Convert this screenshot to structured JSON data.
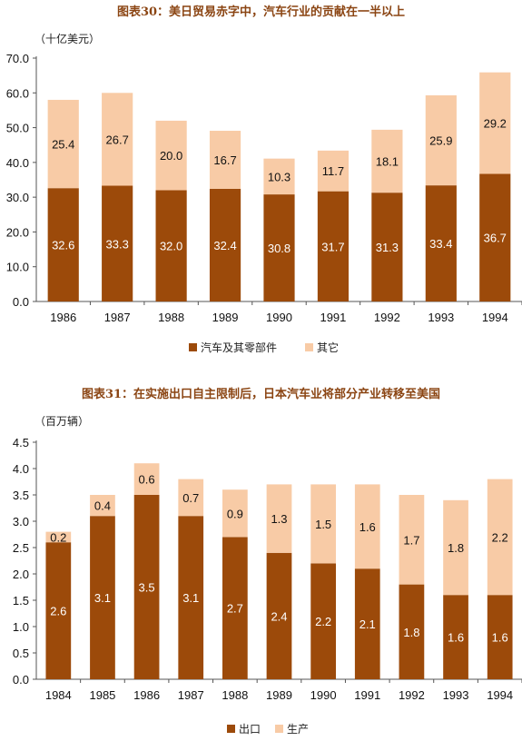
{
  "chart_data": [
    {
      "type": "bar",
      "stacked": true,
      "title": "图表30：美日贸易赤字中，汽车行业的贡献在一半以上",
      "unit_label": "（十亿美元）",
      "categories": [
        "1986",
        "1987",
        "1988",
        "1989",
        "1990",
        "1991",
        "1992",
        "1993",
        "1994"
      ],
      "series": [
        {
          "name": "汽车及其零部件",
          "values": [
            32.6,
            33.3,
            32.0,
            32.4,
            30.8,
            31.7,
            31.3,
            33.4,
            36.7
          ]
        },
        {
          "name": "其它",
          "values": [
            25.4,
            26.7,
            20.0,
            16.7,
            10.3,
            11.7,
            18.1,
            25.9,
            29.2
          ]
        }
      ],
      "ylim": [
        0,
        70
      ],
      "yticks": [
        "0.0",
        "10.0",
        "20.0",
        "30.0",
        "40.0",
        "50.0",
        "60.0",
        "70.0"
      ],
      "legend_position": "bottom",
      "grid": false
    },
    {
      "type": "bar",
      "stacked": true,
      "title": "图表31：在实施出口自主限制后，日本汽车业将部分产业转移至美国",
      "unit_label": "（百万辆）",
      "categories": [
        "1984",
        "1985",
        "1986",
        "1987",
        "1988",
        "1989",
        "1990",
        "1991",
        "1992",
        "1993",
        "1994"
      ],
      "series": [
        {
          "name": "出口",
          "values": [
            2.6,
            3.1,
            3.5,
            3.1,
            2.7,
            2.4,
            2.2,
            2.1,
            1.8,
            1.6,
            1.6
          ]
        },
        {
          "name": "生产",
          "values": [
            0.2,
            0.4,
            0.6,
            0.7,
            0.9,
            1.3,
            1.5,
            1.6,
            1.7,
            1.8,
            2.2
          ]
        }
      ],
      "ylim": [
        0,
        4.5
      ],
      "yticks": [
        "0.0",
        "0.5",
        "1.0",
        "1.5",
        "2.0",
        "2.5",
        "3.0",
        "3.5",
        "4.0",
        "4.5"
      ],
      "legend_position": "bottom",
      "grid": false
    }
  ],
  "colors": {
    "dark": "#9C4A0A",
    "light": "#F8CBA6",
    "title": "#8B4513"
  }
}
